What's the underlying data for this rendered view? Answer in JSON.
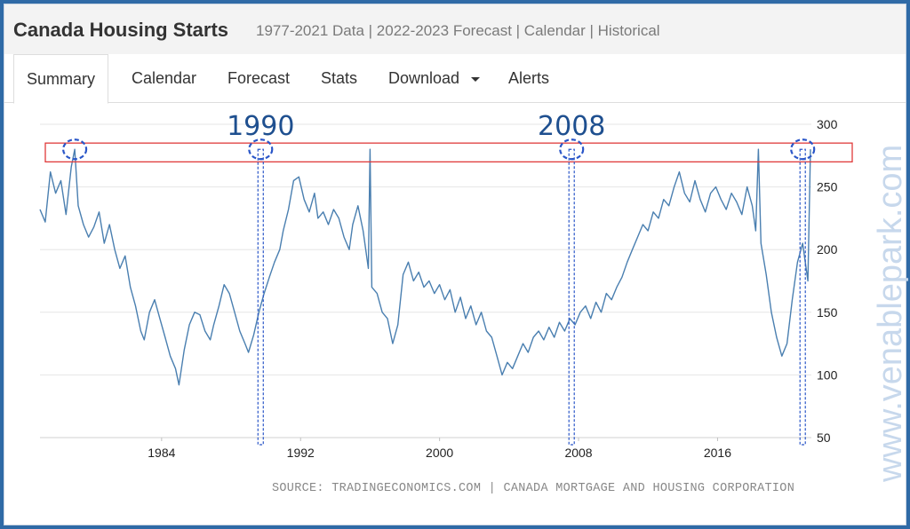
{
  "header": {
    "title": "Canada Housing Starts",
    "subtitle": "1977-2021 Data | 2022-2023 Forecast | Calendar | Historical"
  },
  "tabs": [
    {
      "label": "Summary",
      "active": true
    },
    {
      "label": "Calendar"
    },
    {
      "label": "Forecast"
    },
    {
      "label": "Stats"
    },
    {
      "label": "Download"
    },
    {
      "label": "Alerts"
    }
  ],
  "chart_data": {
    "type": "line",
    "x_ticks": [
      1984,
      1992,
      2000,
      2008,
      2016
    ],
    "y_ticks": [
      50,
      100,
      150,
      200,
      250,
      300
    ],
    "xlim": [
      1977,
      2021.4
    ],
    "ylim": [
      50,
      300
    ],
    "y_axis_side": "right",
    "grid": "horizontal",
    "series": [
      {
        "color": "#4a7fb0",
        "points": [
          [
            1977.0,
            232
          ],
          [
            1977.3,
            222
          ],
          [
            1977.6,
            262
          ],
          [
            1977.9,
            245
          ],
          [
            1978.2,
            255
          ],
          [
            1978.5,
            228
          ],
          [
            1978.8,
            266
          ],
          [
            1979.0,
            280
          ],
          [
            1979.2,
            235
          ],
          [
            1979.5,
            220
          ],
          [
            1979.8,
            210
          ],
          [
            1980.1,
            218
          ],
          [
            1980.4,
            230
          ],
          [
            1980.7,
            205
          ],
          [
            1981.0,
            220
          ],
          [
            1981.3,
            200
          ],
          [
            1981.6,
            185
          ],
          [
            1981.9,
            195
          ],
          [
            1982.2,
            170
          ],
          [
            1982.5,
            155
          ],
          [
            1982.8,
            135
          ],
          [
            1983.0,
            128
          ],
          [
            1983.3,
            150
          ],
          [
            1983.6,
            160
          ],
          [
            1983.9,
            145
          ],
          [
            1984.2,
            130
          ],
          [
            1984.5,
            115
          ],
          [
            1984.8,
            105
          ],
          [
            1985.0,
            92
          ],
          [
            1985.3,
            120
          ],
          [
            1985.6,
            140
          ],
          [
            1985.9,
            150
          ],
          [
            1986.2,
            148
          ],
          [
            1986.5,
            135
          ],
          [
            1986.8,
            128
          ],
          [
            1987.0,
            140
          ],
          [
            1987.3,
            155
          ],
          [
            1987.6,
            172
          ],
          [
            1987.9,
            165
          ],
          [
            1988.2,
            150
          ],
          [
            1988.5,
            135
          ],
          [
            1988.8,
            125
          ],
          [
            1989.0,
            118
          ],
          [
            1989.3,
            132
          ],
          [
            1989.6,
            150
          ],
          [
            1989.9,
            165
          ],
          [
            1990.2,
            178
          ],
          [
            1990.5,
            190
          ],
          [
            1990.8,
            200
          ],
          [
            1991.0,
            215
          ],
          [
            1991.3,
            232
          ],
          [
            1991.6,
            255
          ],
          [
            1991.9,
            258
          ],
          [
            1992.2,
            240
          ],
          [
            1992.5,
            230
          ],
          [
            1992.8,
            245
          ],
          [
            1993.0,
            225
          ],
          [
            1993.3,
            230
          ],
          [
            1993.6,
            220
          ],
          [
            1993.9,
            232
          ],
          [
            1994.2,
            225
          ],
          [
            1994.5,
            210
          ],
          [
            1994.8,
            200
          ],
          [
            1995.0,
            220
          ],
          [
            1995.3,
            235
          ],
          [
            1995.6,
            215
          ],
          [
            1995.9,
            185
          ],
          [
            1996.0,
            280
          ],
          [
            1996.1,
            170
          ],
          [
            1996.4,
            165
          ],
          [
            1996.7,
            150
          ],
          [
            1997.0,
            145
          ],
          [
            1997.3,
            125
          ],
          [
            1997.6,
            140
          ],
          [
            1997.9,
            180
          ],
          [
            1998.2,
            190
          ],
          [
            1998.5,
            175
          ],
          [
            1998.8,
            182
          ],
          [
            1999.1,
            170
          ],
          [
            1999.4,
            175
          ],
          [
            1999.7,
            165
          ],
          [
            2000.0,
            172
          ],
          [
            2000.3,
            160
          ],
          [
            2000.6,
            168
          ],
          [
            2000.9,
            150
          ],
          [
            2001.2,
            162
          ],
          [
            2001.5,
            145
          ],
          [
            2001.8,
            155
          ],
          [
            2002.1,
            140
          ],
          [
            2002.4,
            150
          ],
          [
            2002.7,
            135
          ],
          [
            2003.0,
            130
          ],
          [
            2003.3,
            115
          ],
          [
            2003.6,
            100
          ],
          [
            2003.9,
            110
          ],
          [
            2004.2,
            105
          ],
          [
            2004.5,
            115
          ],
          [
            2004.8,
            125
          ],
          [
            2005.1,
            118
          ],
          [
            2005.4,
            130
          ],
          [
            2005.7,
            135
          ],
          [
            2006.0,
            128
          ],
          [
            2006.3,
            138
          ],
          [
            2006.6,
            130
          ],
          [
            2006.9,
            142
          ],
          [
            2007.2,
            135
          ],
          [
            2007.5,
            145
          ],
          [
            2007.8,
            140
          ],
          [
            2008.1,
            150
          ],
          [
            2008.4,
            155
          ],
          [
            2008.7,
            145
          ],
          [
            2009.0,
            158
          ],
          [
            2009.3,
            150
          ],
          [
            2009.6,
            165
          ],
          [
            2009.9,
            160
          ],
          [
            2010.2,
            170
          ],
          [
            2010.5,
            178
          ],
          [
            2010.8,
            190
          ],
          [
            2011.1,
            200
          ],
          [
            2011.4,
            210
          ],
          [
            2011.7,
            220
          ],
          [
            2012.0,
            215
          ],
          [
            2012.3,
            230
          ],
          [
            2012.6,
            225
          ],
          [
            2012.9,
            240
          ],
          [
            2013.2,
            235
          ],
          [
            2013.5,
            250
          ],
          [
            2013.8,
            262
          ],
          [
            2014.1,
            245
          ],
          [
            2014.4,
            238
          ],
          [
            2014.7,
            255
          ],
          [
            2015.0,
            240
          ],
          [
            2015.3,
            230
          ],
          [
            2015.6,
            245
          ],
          [
            2015.9,
            250
          ],
          [
            2016.2,
            240
          ],
          [
            2016.5,
            232
          ],
          [
            2016.8,
            245
          ],
          [
            2017.1,
            238
          ],
          [
            2017.4,
            228
          ],
          [
            2017.7,
            250
          ],
          [
            2018.0,
            235
          ],
          [
            2018.2,
            215
          ],
          [
            2018.35,
            280
          ],
          [
            2018.5,
            205
          ],
          [
            2018.8,
            180
          ],
          [
            2019.1,
            150
          ],
          [
            2019.4,
            130
          ],
          [
            2019.7,
            115
          ],
          [
            2020.0,
            125
          ],
          [
            2020.3,
            160
          ],
          [
            2020.6,
            190
          ],
          [
            2020.9,
            205
          ],
          [
            2021.2,
            175
          ],
          [
            2021.35,
            280
          ]
        ]
      }
    ],
    "annotations": [
      {
        "type": "label",
        "text": "1990",
        "x": 1989.7
      },
      {
        "type": "label",
        "text": "2008",
        "x": 2007.6
      },
      {
        "type": "band",
        "y_range": [
          270,
          285
        ]
      },
      {
        "type": "circle",
        "x": 1979.0,
        "y": 280
      },
      {
        "type": "circle",
        "x": 1989.7,
        "y": 280
      },
      {
        "type": "circle",
        "x": 2007.6,
        "y": 280
      },
      {
        "type": "circle",
        "x": 2020.9,
        "y": 280
      },
      {
        "type": "vline",
        "x": 1989.7
      },
      {
        "type": "vline",
        "x": 2007.6
      },
      {
        "type": "vline",
        "x": 2020.9
      }
    ]
  },
  "source": "SOURCE: TRADINGECONOMICS.COM | CANADA MORTGAGE AND HOUSING CORPORATION",
  "watermark": "www.venablepark.com",
  "colors": {
    "line": "#4a7fb0",
    "annotation": "#2a56c8",
    "band": "#e03a3a",
    "frame": "#2f6aa6"
  }
}
